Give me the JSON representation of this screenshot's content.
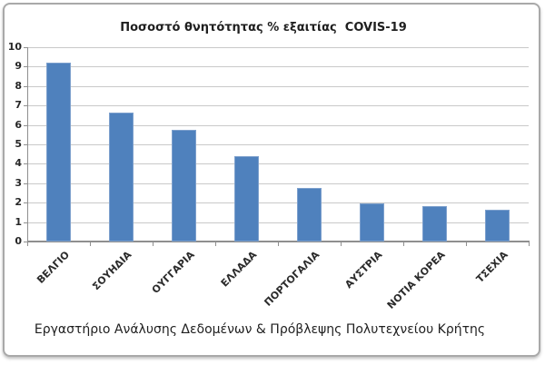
{
  "chart_data": {
    "type": "bar",
    "title": "Ποσοστό θνητότητας % εξαιτίας  COVIS-19",
    "categories": [
      "ΒΕΛΓΙΟ",
      "ΣΟΥΗΔΙΑ",
      "ΟΥΓΓΑΡΙΑ",
      "ΕΛΛΑΔΑ",
      "ΠΟΡΤΟΓΑΛΙΑ",
      "ΑΥΣΤΡΙΑ",
      "ΝΟΤΙΑ ΚΟΡΕΑ",
      "ΤΣΕΧΙΑ"
    ],
    "values": [
      9.2,
      6.65,
      5.75,
      4.4,
      2.75,
      1.95,
      1.8,
      1.65
    ],
    "xlabel": "",
    "ylabel": "",
    "ylim": [
      0,
      10
    ],
    "ytick_step": 1,
    "yticks": [
      0,
      1,
      2,
      3,
      4,
      5,
      6,
      7,
      8,
      9,
      10
    ],
    "grid": true,
    "legend": "none",
    "footer": "Εργαστήριο Ανάλυσης Δεδομένων & Πρόβλεψης Πολυτεχνείου Κρήτης",
    "colors": {
      "bar": "#4F81BD",
      "bar_edge": "#7da0cd",
      "gridline": "#C9C9C9",
      "axis": "#8F8F8F",
      "text": "#262626",
      "frame_border": "#A9A9A9",
      "background": "#FFFFFF"
    }
  }
}
